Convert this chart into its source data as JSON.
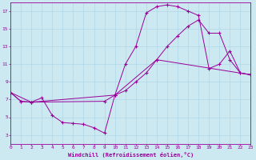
{
  "xlabel": "Windchill (Refroidissement éolien,°C)",
  "bg_color": "#cce8f0",
  "line_color": "#990099",
  "grid_color": "#b0d8e8",
  "xmin": 0,
  "xmax": 23,
  "ymin": 2,
  "ymax": 18,
  "yticks": [
    3,
    5,
    7,
    9,
    11,
    13,
    15,
    17
  ],
  "xticks": [
    0,
    1,
    2,
    3,
    4,
    5,
    6,
    7,
    8,
    9,
    10,
    11,
    12,
    13,
    14,
    15,
    16,
    17,
    18,
    19,
    20,
    21,
    22,
    23
  ],
  "curve1_x": [
    0,
    1,
    2,
    3,
    4,
    5,
    6,
    7,
    8,
    9,
    10,
    11,
    12,
    13,
    14,
    15,
    16,
    17,
    18,
    19,
    20,
    21,
    22,
    23
  ],
  "curve1_y": [
    7.8,
    6.8,
    6.7,
    7.2,
    5.2,
    4.4,
    4.3,
    4.2,
    3.8,
    3.2,
    7.5,
    11.0,
    13.0,
    16.8,
    17.5,
    17.7,
    17.5,
    17.0,
    16.5,
    10.5,
    11.0,
    12.5,
    10.0,
    9.8
  ],
  "curve2_x": [
    0,
    1,
    2,
    9,
    10,
    11,
    12,
    13,
    14,
    15,
    16,
    17,
    18,
    19,
    20,
    21,
    22,
    23
  ],
  "curve2_y": [
    7.8,
    6.8,
    6.7,
    6.8,
    7.5,
    8.0,
    9.0,
    10.0,
    11.5,
    13.0,
    14.2,
    15.3,
    16.0,
    14.5,
    14.5,
    11.5,
    10.0,
    9.8
  ],
  "curve3_x": [
    0,
    2,
    10,
    14,
    23
  ],
  "curve3_y": [
    7.8,
    6.7,
    7.5,
    11.5,
    9.8
  ]
}
